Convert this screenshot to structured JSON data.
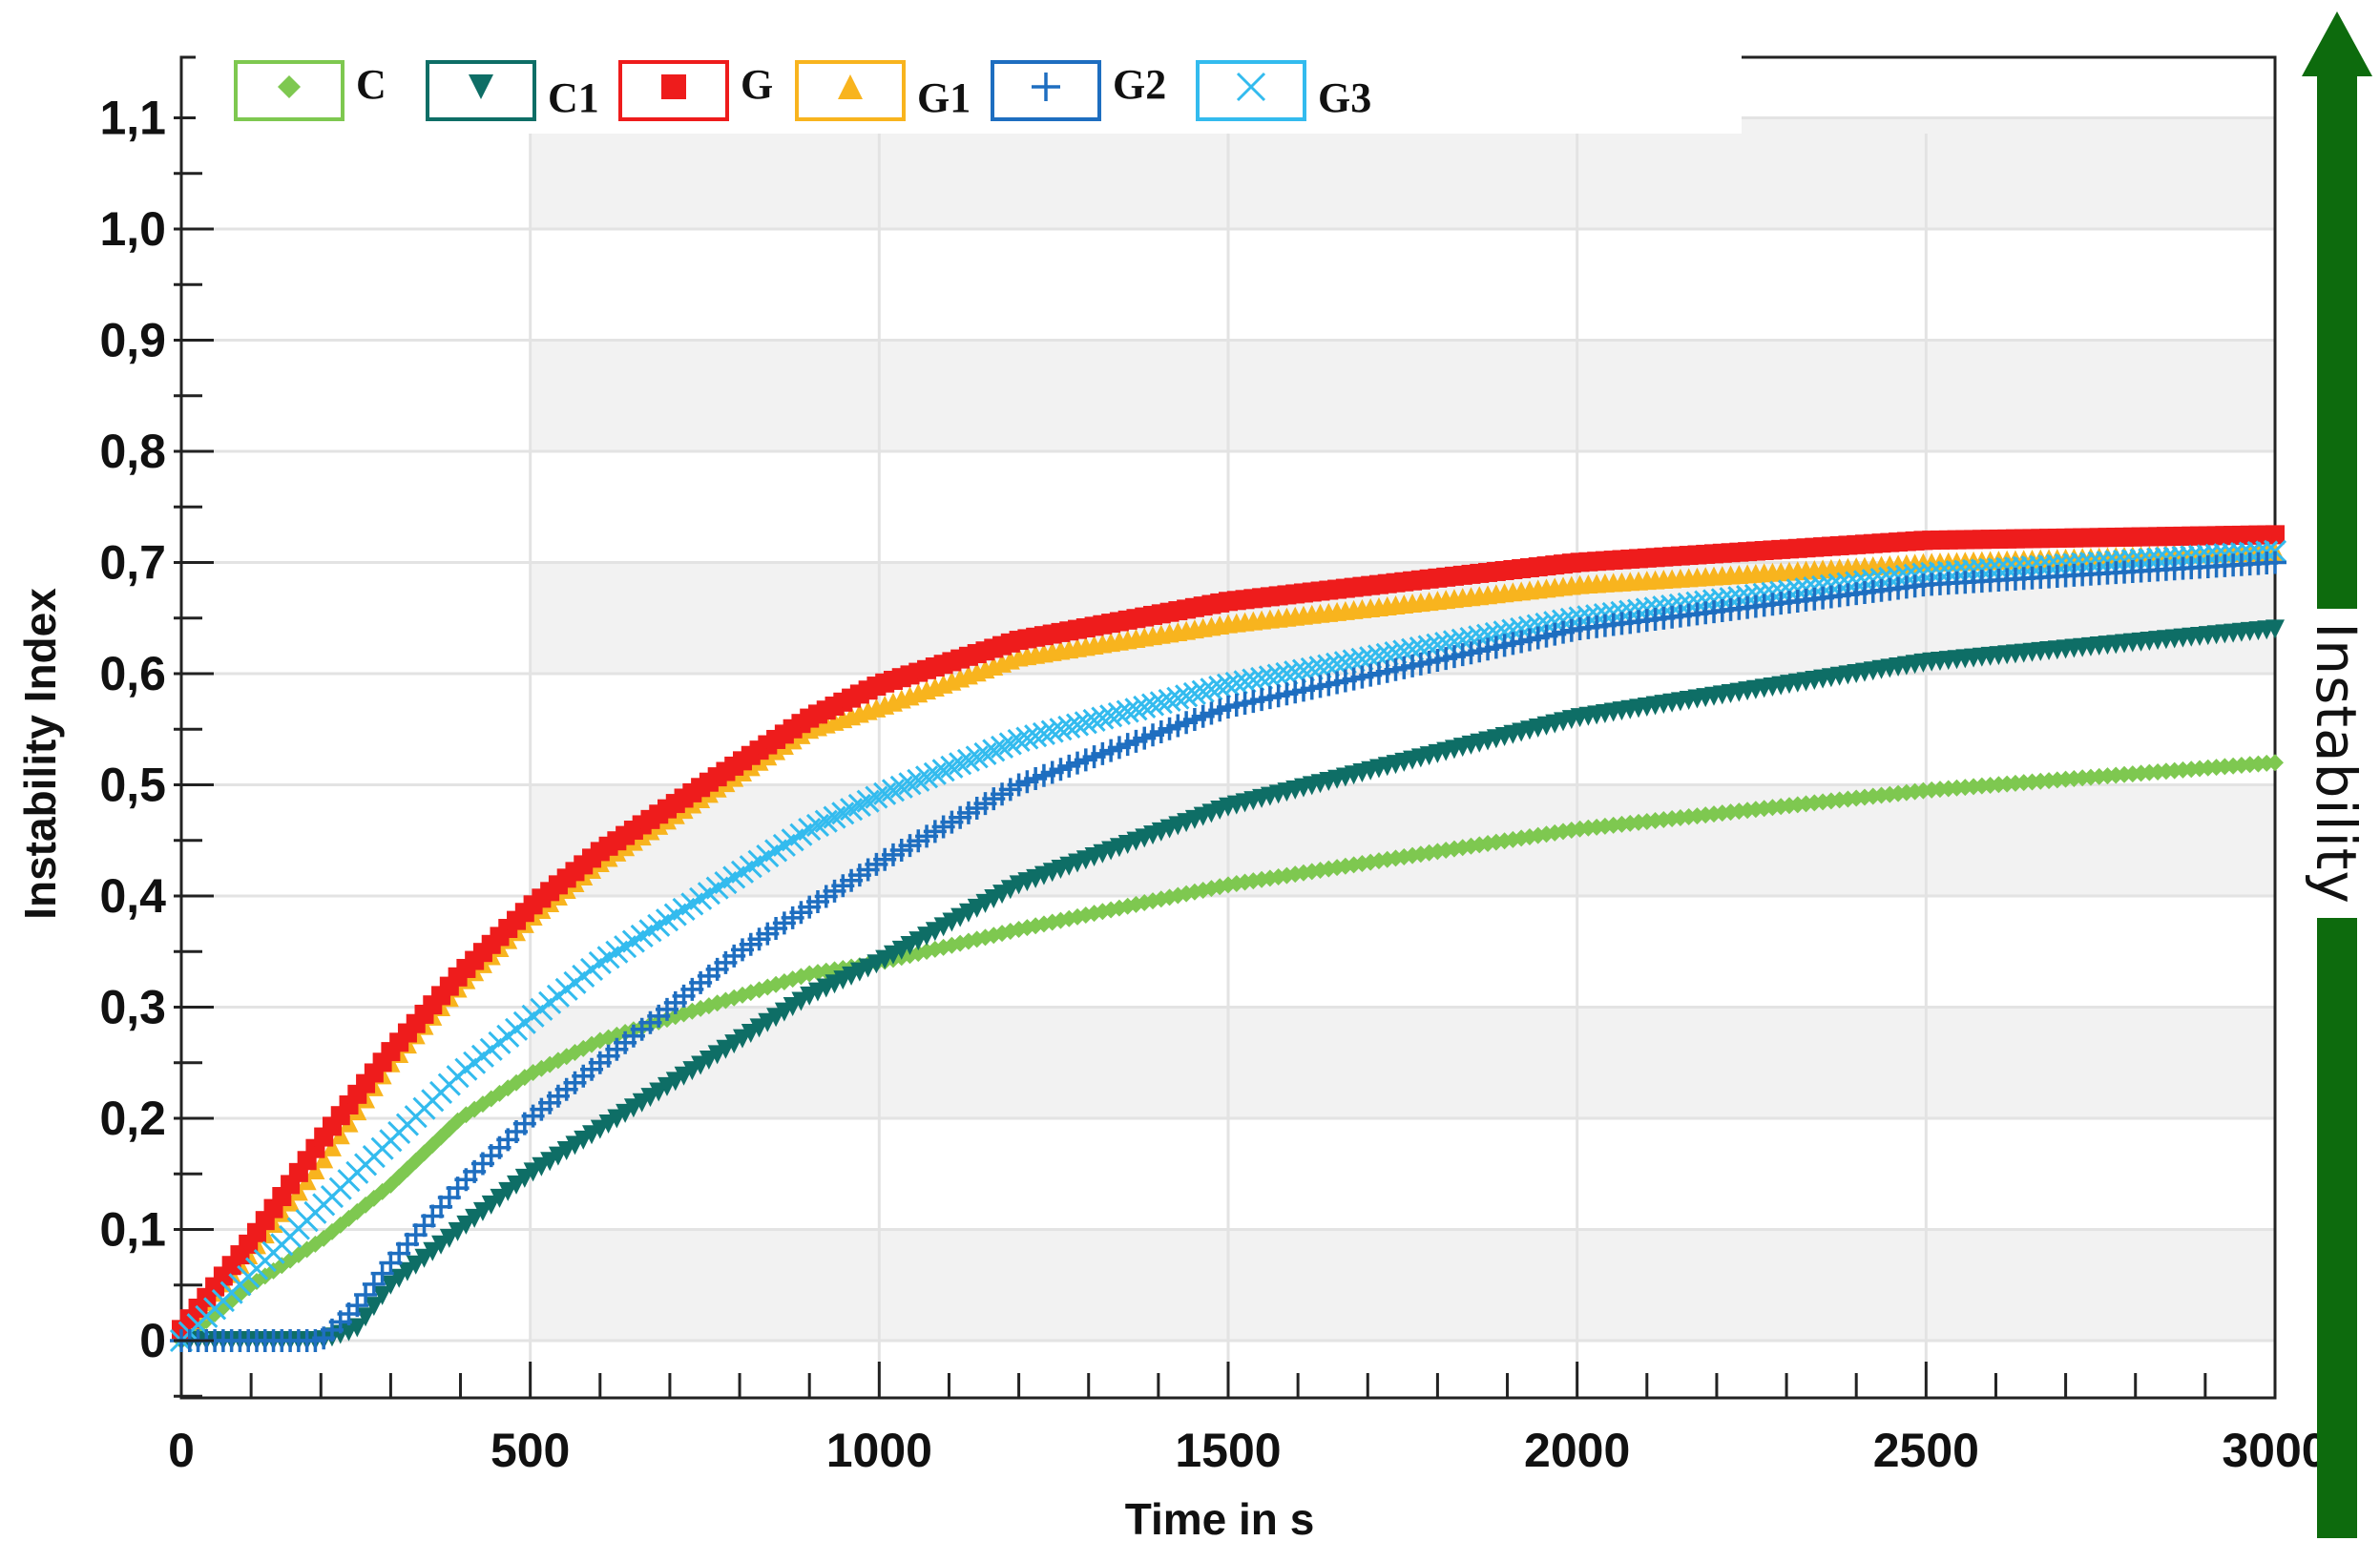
{
  "chart_data": {
    "type": "scatter",
    "title": "",
    "xlabel": "Time in s",
    "ylabel": "Instability  Index",
    "side_label": "Instability",
    "xlim": [
      0,
      3000
    ],
    "ylim": [
      -0.05,
      1.15
    ],
    "x_ticks": [
      0,
      500,
      1000,
      1500,
      2000,
      2500,
      3000
    ],
    "x_tick_labels": [
      "0",
      "500",
      "1000",
      "1500",
      "2000",
      "2500",
      "3000"
    ],
    "y_ticks": [
      0,
      0.1,
      0.2,
      0.3,
      0.4,
      0.5,
      0.6,
      0.7,
      0.8,
      0.9,
      1.0,
      1.1
    ],
    "y_tick_labels": [
      "0",
      "0,1",
      "0,2",
      "0,3",
      "0,4",
      "0,5",
      "0,6",
      "0,7",
      "0,8",
      "0,9",
      "1,0",
      "1,1"
    ],
    "grid": true,
    "legend_position": "top",
    "series": [
      {
        "name": "C",
        "color": "#7ec850",
        "marker": "diamond",
        "x": [
          0,
          100,
          200,
          300,
          400,
          500,
          600,
          700,
          800,
          900,
          1000,
          1200,
          1500,
          2000,
          2500,
          3000
        ],
        "y": [
          0.0,
          0.05,
          0.09,
          0.14,
          0.2,
          0.24,
          0.27,
          0.29,
          0.31,
          0.33,
          0.34,
          0.37,
          0.41,
          0.46,
          0.495,
          0.52
        ]
      },
      {
        "name": "C1",
        "color": "#0e6e66",
        "marker": "triangle-down",
        "x": [
          0,
          100,
          200,
          250,
          300,
          400,
          500,
          600,
          700,
          800,
          900,
          1000,
          1200,
          1500,
          2000,
          2500,
          3000
        ],
        "y": [
          0.0,
          0.0,
          0.0,
          0.01,
          0.05,
          0.1,
          0.15,
          0.19,
          0.23,
          0.27,
          0.31,
          0.34,
          0.41,
          0.48,
          0.56,
          0.61,
          0.64
        ]
      },
      {
        "name": "G",
        "color": "#ee1c1c",
        "marker": "square",
        "x": [
          0,
          100,
          200,
          300,
          400,
          500,
          600,
          700,
          800,
          900,
          1000,
          1200,
          1500,
          2000,
          2500,
          3000
        ],
        "y": [
          0.01,
          0.09,
          0.18,
          0.26,
          0.33,
          0.39,
          0.44,
          0.48,
          0.52,
          0.56,
          0.59,
          0.63,
          0.665,
          0.7,
          0.72,
          0.725
        ]
      },
      {
        "name": "G1",
        "color": "#f8b41e",
        "marker": "triangle",
        "x": [
          0,
          100,
          200,
          300,
          400,
          500,
          600,
          700,
          800,
          900,
          1000,
          1200,
          1500,
          2000,
          2500,
          3000
        ],
        "y": [
          0.01,
          0.08,
          0.16,
          0.25,
          0.32,
          0.38,
          0.43,
          0.47,
          0.51,
          0.55,
          0.57,
          0.615,
          0.645,
          0.68,
          0.7,
          0.71
        ]
      },
      {
        "name": "G2",
        "color": "#1e6ec0",
        "marker": "plus",
        "x": [
          0,
          100,
          200,
          250,
          300,
          400,
          500,
          600,
          700,
          800,
          900,
          1000,
          1200,
          1500,
          2000,
          2500,
          3000
        ],
        "y": [
          0.0,
          0.0,
          0.0,
          0.03,
          0.07,
          0.14,
          0.2,
          0.25,
          0.3,
          0.35,
          0.39,
          0.43,
          0.5,
          0.57,
          0.64,
          0.68,
          0.7
        ]
      },
      {
        "name": "G3",
        "color": "#33bbee",
        "marker": "x",
        "x": [
          0,
          100,
          200,
          300,
          400,
          500,
          600,
          700,
          800,
          900,
          1000,
          1200,
          1500,
          2000,
          2500,
          3000
        ],
        "y": [
          0.0,
          0.06,
          0.12,
          0.18,
          0.24,
          0.29,
          0.34,
          0.38,
          0.42,
          0.46,
          0.49,
          0.54,
          0.59,
          0.65,
          0.69,
          0.71
        ]
      }
    ]
  },
  "colors": {
    "arrow": "#0d6b0d",
    "band": "#f2f2f2",
    "grid": "#e3e3e3"
  }
}
